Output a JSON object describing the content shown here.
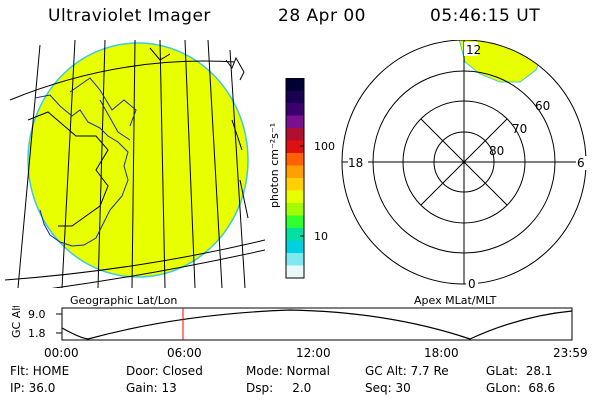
{
  "header": {
    "instrument": "Ultraviolet Imager",
    "date": "28 Apr 00",
    "time": "05:46:15 UT"
  },
  "map_label": "Geographic Lat/Lon",
  "polar": {
    "label": "Apex MLat/MLT",
    "mlt_labels": {
      "top": "12",
      "left": "18",
      "right": "6",
      "bottom": "0"
    },
    "lat_labels": [
      "60",
      "70",
      "80"
    ]
  },
  "colorbar": {
    "unit_label": "photon cm⁻²s⁻¹",
    "ticks": [
      "100",
      "10"
    ],
    "colors": [
      "#000033",
      "#1a0050",
      "#3a0070",
      "#7a1090",
      "#b01030",
      "#e01010",
      "#ff6000",
      "#ffa000",
      "#ffd000",
      "#e8ff00",
      "#a0ff00",
      "#30ff30",
      "#00e0a0",
      "#00d0e0",
      "#80e8f0",
      "#e8f8f8"
    ]
  },
  "altitude_plot": {
    "axis_label": "GC Alt",
    "y_ticks": [
      "9.0",
      "1.8"
    ],
    "x_ticks": [
      "00:00",
      "06:00",
      "12:00",
      "18:00",
      "23:59"
    ],
    "current_time_color": "#ff0000"
  },
  "footer": {
    "flt": "Flt: HOME",
    "ip": "IP: 36.0",
    "door": "Door: Closed",
    "gain": "Gain: 13",
    "mode": "Mode: Normal",
    "dsp": "Dsp:     2.0",
    "gc_alt": "GC Alt: 7.7 Re",
    "seq": "Seq: 30",
    "glat": "GLat:  28.1",
    "glon": "GLon:  68.6"
  },
  "image_fill_color": "#e8ff00"
}
